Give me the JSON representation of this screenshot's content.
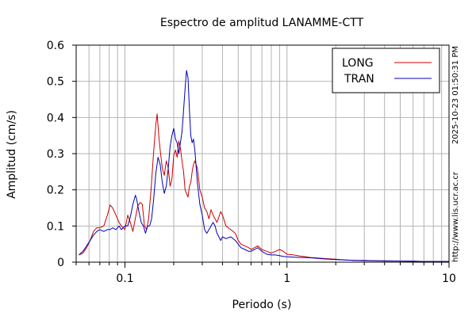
{
  "chart_data": {
    "type": "line",
    "title": "Espectro de amplitud LANAMME-CTT",
    "xlabel": "Periodo (s)",
    "ylabel": "Amplitud (cm/s)",
    "xscale": "log",
    "xlim": [
      0.05,
      10
    ],
    "ylim": [
      0,
      0.6
    ],
    "x_ticks": [
      0.1,
      1,
      10
    ],
    "x_tick_labels": [
      "0.1",
      "1",
      "10"
    ],
    "y_ticks": [
      0,
      0.1,
      0.2,
      0.3,
      0.4,
      0.5,
      0.6
    ],
    "y_tick_labels": [
      "0",
      "0.1",
      "0.2",
      "0.3",
      "0.4",
      "0.5",
      "0.6"
    ],
    "grid": true,
    "legend_position": "top-right",
    "side_text": [
      "2025-10-23 01:50:31 PM",
      "http://www.lis.ucr.ac.cr"
    ],
    "series": [
      {
        "name": "LONG",
        "color": "#cc0000",
        "x": [
          0.052,
          0.055,
          0.058,
          0.061,
          0.064,
          0.067,
          0.07,
          0.074,
          0.078,
          0.081,
          0.084,
          0.088,
          0.092,
          0.095,
          0.1,
          0.104,
          0.108,
          0.112,
          0.117,
          0.12,
          0.124,
          0.128,
          0.132,
          0.136,
          0.14,
          0.145,
          0.15,
          0.155,
          0.158,
          0.162,
          0.166,
          0.17,
          0.175,
          0.18,
          0.185,
          0.19,
          0.195,
          0.2,
          0.205,
          0.21,
          0.215,
          0.22,
          0.225,
          0.23,
          0.235,
          0.24,
          0.245,
          0.25,
          0.255,
          0.26,
          0.265,
          0.27,
          0.28,
          0.29,
          0.3,
          0.31,
          0.32,
          0.33,
          0.34,
          0.35,
          0.36,
          0.37,
          0.38,
          0.39,
          0.4,
          0.42,
          0.45,
          0.48,
          0.5,
          0.52,
          0.55,
          0.58,
          0.6,
          0.63,
          0.66,
          0.7,
          0.75,
          0.8,
          0.85,
          0.9,
          0.95,
          1.0,
          1.1,
          1.2,
          1.3,
          1.4,
          1.5,
          1.7,
          2.0,
          2.3,
          2.6,
          3.0,
          3.5,
          4.0,
          5.0,
          6.0,
          7.0,
          8.0,
          9.0,
          10.0
        ],
        "y": [
          0.02,
          0.025,
          0.04,
          0.06,
          0.085,
          0.095,
          0.095,
          0.1,
          0.13,
          0.158,
          0.15,
          0.13,
          0.11,
          0.1,
          0.09,
          0.13,
          0.11,
          0.085,
          0.13,
          0.155,
          0.165,
          0.16,
          0.1,
          0.09,
          0.12,
          0.2,
          0.3,
          0.38,
          0.41,
          0.345,
          0.3,
          0.26,
          0.24,
          0.28,
          0.26,
          0.21,
          0.23,
          0.295,
          0.31,
          0.29,
          0.335,
          0.315,
          0.28,
          0.25,
          0.2,
          0.19,
          0.18,
          0.21,
          0.22,
          0.25,
          0.27,
          0.28,
          0.26,
          0.2,
          0.18,
          0.15,
          0.14,
          0.12,
          0.145,
          0.13,
          0.12,
          0.11,
          0.125,
          0.14,
          0.13,
          0.1,
          0.09,
          0.08,
          0.06,
          0.05,
          0.045,
          0.04,
          0.035,
          0.04,
          0.045,
          0.035,
          0.03,
          0.025,
          0.03,
          0.035,
          0.03,
          0.022,
          0.02,
          0.017,
          0.015,
          0.013,
          0.012,
          0.01,
          0.008,
          0.006,
          0.005,
          0.004,
          0.004,
          0.003,
          0.003,
          0.002,
          0.002,
          0.002,
          0.002,
          0.002
        ]
      },
      {
        "name": "TRAN",
        "color": "#0000bb",
        "x": [
          0.052,
          0.055,
          0.058,
          0.061,
          0.064,
          0.067,
          0.07,
          0.074,
          0.078,
          0.081,
          0.084,
          0.088,
          0.092,
          0.095,
          0.1,
          0.104,
          0.108,
          0.112,
          0.116,
          0.118,
          0.122,
          0.126,
          0.13,
          0.134,
          0.138,
          0.142,
          0.146,
          0.15,
          0.155,
          0.16,
          0.165,
          0.17,
          0.175,
          0.18,
          0.185,
          0.19,
          0.195,
          0.2,
          0.205,
          0.21,
          0.215,
          0.22,
          0.225,
          0.23,
          0.235,
          0.24,
          0.245,
          0.25,
          0.255,
          0.26,
          0.265,
          0.27,
          0.28,
          0.29,
          0.3,
          0.31,
          0.32,
          0.33,
          0.34,
          0.35,
          0.36,
          0.37,
          0.38,
          0.39,
          0.4,
          0.42,
          0.45,
          0.48,
          0.5,
          0.52,
          0.55,
          0.58,
          0.6,
          0.63,
          0.66,
          0.7,
          0.75,
          0.8,
          0.85,
          0.9,
          0.95,
          1.0,
          1.1,
          1.2,
          1.3,
          1.4,
          1.5,
          1.7,
          2.0,
          2.3,
          2.6,
          3.0,
          3.5,
          4.0,
          5.0,
          6.0,
          7.0,
          8.0,
          9.0,
          10.0
        ],
        "y": [
          0.02,
          0.03,
          0.045,
          0.06,
          0.075,
          0.085,
          0.09,
          0.085,
          0.09,
          0.09,
          0.095,
          0.09,
          0.1,
          0.09,
          0.1,
          0.1,
          0.125,
          0.16,
          0.185,
          0.175,
          0.14,
          0.11,
          0.1,
          0.08,
          0.1,
          0.1,
          0.12,
          0.17,
          0.245,
          0.29,
          0.27,
          0.22,
          0.19,
          0.21,
          0.26,
          0.32,
          0.35,
          0.37,
          0.34,
          0.33,
          0.3,
          0.33,
          0.36,
          0.42,
          0.48,
          0.53,
          0.51,
          0.42,
          0.35,
          0.33,
          0.34,
          0.31,
          0.22,
          0.16,
          0.13,
          0.09,
          0.08,
          0.09,
          0.1,
          0.11,
          0.1,
          0.08,
          0.07,
          0.06,
          0.07,
          0.065,
          0.07,
          0.06,
          0.05,
          0.04,
          0.035,
          0.03,
          0.03,
          0.035,
          0.04,
          0.03,
          0.022,
          0.02,
          0.02,
          0.018,
          0.016,
          0.015,
          0.014,
          0.013,
          0.013,
          0.012,
          0.011,
          0.009,
          0.007,
          0.006,
          0.005,
          0.005,
          0.004,
          0.004,
          0.003,
          0.003,
          0.002,
          0.002,
          0.002,
          0.002
        ]
      }
    ]
  }
}
